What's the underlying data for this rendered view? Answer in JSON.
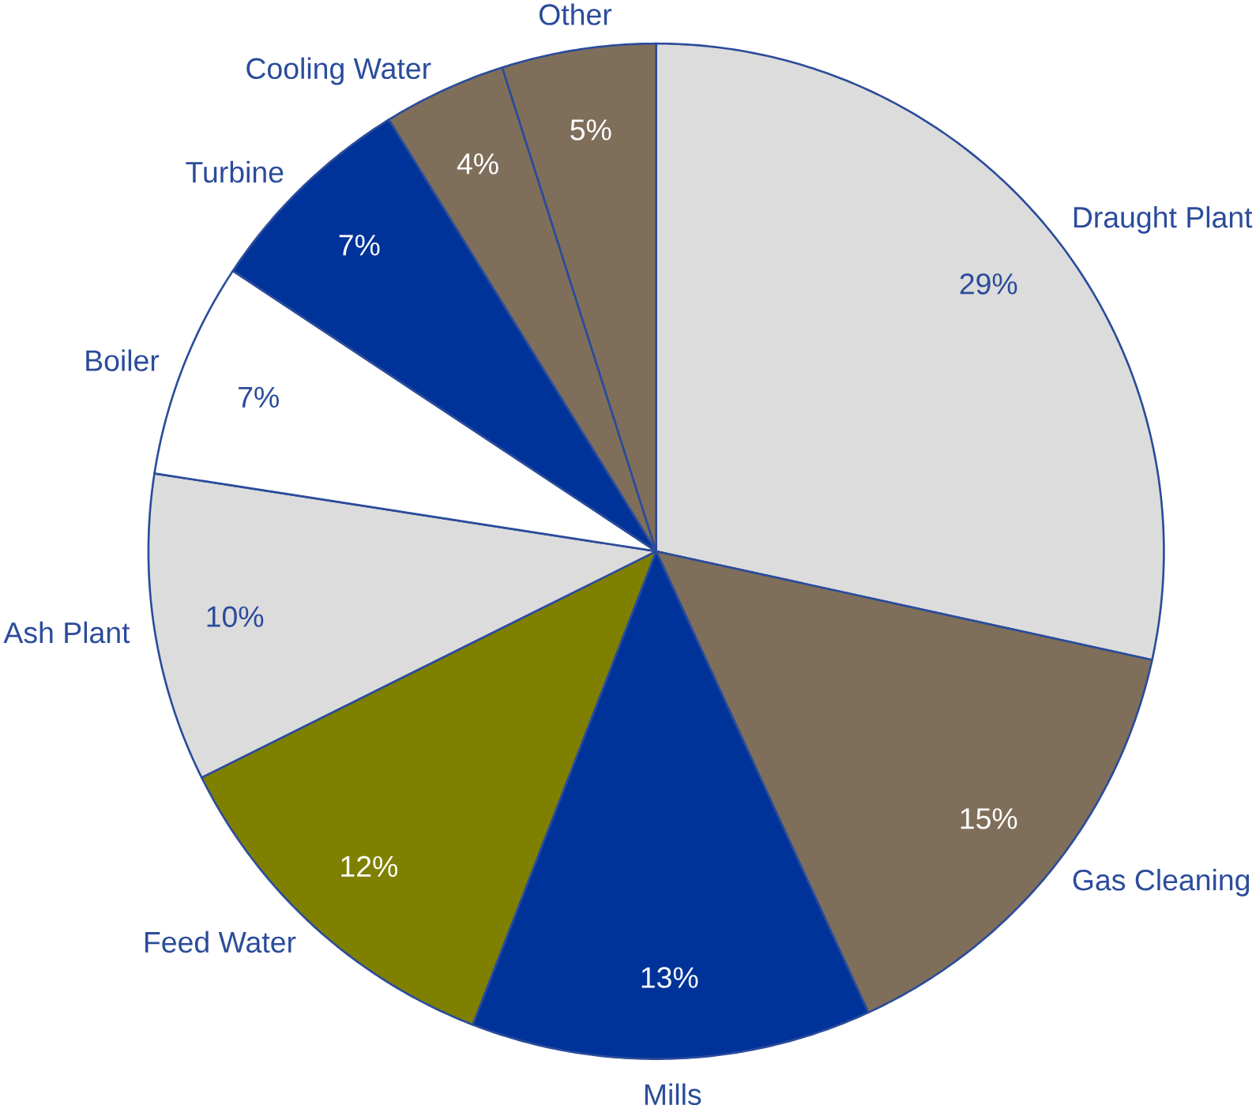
{
  "chart_data": {
    "type": "pie",
    "categories": [
      "Draught Plant",
      "Gas Cleaning",
      "Mills",
      "Feed Water",
      "Ash Plant",
      "Boiler",
      "Turbine",
      "Cooling Water",
      "Other"
    ],
    "values": [
      29,
      15,
      13,
      12,
      10,
      7,
      7,
      4,
      5
    ],
    "colors": [
      "#dcdcdc",
      "#7f6f5a",
      "#003399",
      "#808000",
      "#dcdcdc",
      "#ffffff",
      "#003399",
      "#7f6f5a",
      "#7f6f5a"
    ],
    "value_labels": [
      "29%",
      "15%",
      "13%",
      "12%",
      "10%",
      "7%",
      "7%",
      "4%",
      "5%"
    ]
  }
}
